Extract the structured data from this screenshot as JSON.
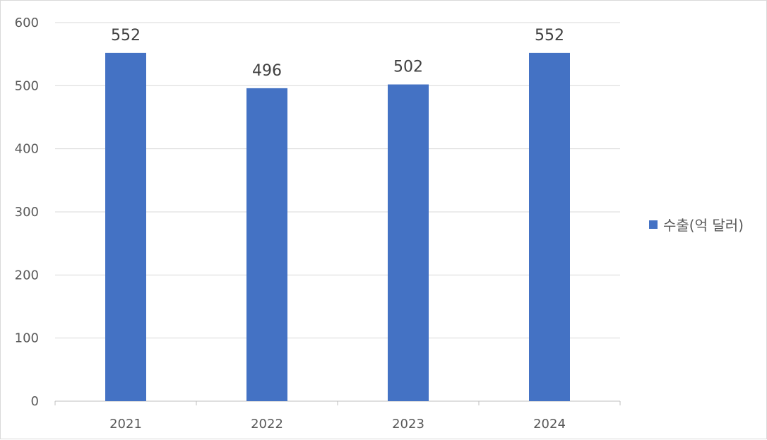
{
  "chart_data": {
    "type": "bar",
    "categories": [
      "2021",
      "2022",
      "2023",
      "2024"
    ],
    "series": [
      {
        "name": "수출(억 달러)",
        "values": [
          552,
          496,
          502,
          552
        ],
        "color": "#4472C4"
      }
    ],
    "data_labels": [
      "552",
      "496",
      "502",
      "552"
    ],
    "y_ticks": [
      "0",
      "100",
      "200",
      "300",
      "400",
      "500",
      "600"
    ],
    "ylim": [
      0,
      600
    ],
    "y_tick_values": [
      0,
      100,
      200,
      300,
      400,
      500,
      600
    ],
    "grid": true,
    "legend_position": "right",
    "gridline_color": "#d9d9d9",
    "axis_color": "#bfbfbf"
  }
}
